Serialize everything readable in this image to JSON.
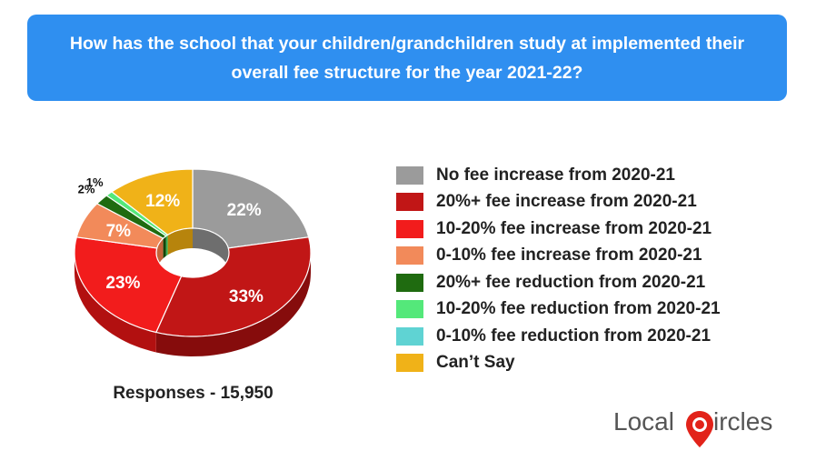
{
  "header": {
    "question": "How has the school that your children/grandchildren study at implemented their overall fee structure for the year 2021-22?"
  },
  "responses_label": "Responses - 15,950",
  "logo": {
    "left": "Local",
    "right": "ircles"
  },
  "chart_data": {
    "type": "pie",
    "style": "3d-donut",
    "legend_position": "right",
    "slices": [
      {
        "label": "No fee increase from 2020-21",
        "value": 22,
        "display": "22%",
        "color": "#9b9b9b",
        "side": "#6e6e6e"
      },
      {
        "label": "20%+ fee increase from 2020-21",
        "value": 33,
        "display": "33%",
        "color": "#c11616",
        "side": "#860c0c"
      },
      {
        "label": "10-20% fee increase from 2020-21",
        "value": 23,
        "display": "23%",
        "color": "#f21c1c",
        "side": "#b21010"
      },
      {
        "label": "0-10% fee increase from 2020-21",
        "value": 7,
        "display": "7%",
        "color": "#f28a5a",
        "side": "#c4643a"
      },
      {
        "label": "20%+ fee reduction from 2020-21",
        "value": 2,
        "display": "2%",
        "color": "#1f6b10",
        "side": "#134509"
      },
      {
        "label": "10-20% fee reduction from 2020-21",
        "value": 1,
        "display": "1%",
        "color": "#54e87a",
        "side": "#33b455"
      },
      {
        "label": "0-10% fee reduction from 2020-21",
        "value": 0,
        "display": "",
        "color": "#5fd3d3",
        "side": "#3fa5a5"
      },
      {
        "label": "Can’t Say",
        "value": 12,
        "display": "12%",
        "color": "#f0b218",
        "side": "#b7840c"
      }
    ]
  }
}
